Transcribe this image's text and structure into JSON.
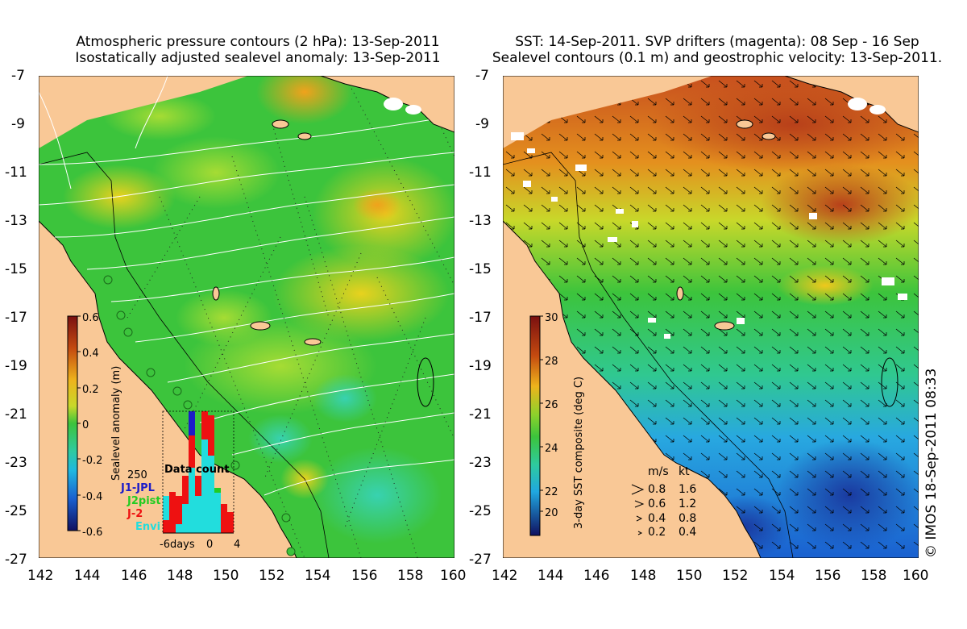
{
  "left_panel": {
    "title_line1": "Atmospheric pressure contours (2 hPa): 13-Sep-2011",
    "title_line2": "Isostatically adjusted sealevel anomaly: 13-Sep-2011",
    "colorbar": {
      "label": "Sealevel anomaly (m)",
      "ticks": [
        "0.6",
        "0.4",
        "0.2",
        "0",
        "-0.2",
        "-0.4",
        "-0.6"
      ]
    },
    "inset": {
      "title": "Data count",
      "max_label": "250",
      "x_ticks": [
        "-6days",
        "0",
        "4"
      ],
      "legend": [
        {
          "name": "J1-JPL",
          "color": "#1c1cc8"
        },
        {
          "name": "J2pist",
          "color": "#22cc22"
        },
        {
          "name": "J-2",
          "color": "#ee1111"
        },
        {
          "name": "Envi",
          "color": "#22dddd"
        }
      ]
    }
  },
  "right_panel": {
    "title_line1": "SST: 14-Sep-2011. SVP drifters (magenta): 08 Sep - 16 Sep",
    "title_line2": "Sealevel contours (0.1 m) and geostrophic velocity: 13-Sep-2011.",
    "colorbar": {
      "label": "3-day SST composite (deg C)",
      "ticks": [
        "30",
        "28",
        "26",
        "24",
        "22",
        "20"
      ]
    },
    "velocity_legend": {
      "header_ms": "m/s",
      "header_kt": "kt",
      "rows": [
        {
          "ms": "0.8",
          "kt": "1.6"
        },
        {
          "ms": "0.6",
          "kt": "1.2"
        },
        {
          "ms": "0.4",
          "kt": "0.8"
        },
        {
          "ms": "0.2",
          "kt": "0.4"
        }
      ]
    }
  },
  "axes": {
    "lat_ticks": [
      "-7",
      "-9",
      "-11",
      "-13",
      "-15",
      "-17",
      "-19",
      "-21",
      "-23",
      "-25",
      "-27"
    ],
    "lon_ticks": [
      "142",
      "144",
      "146",
      "148",
      "150",
      "152",
      "154",
      "156",
      "158",
      "160"
    ]
  },
  "copyright": "© IMOS 18-Sep-2011 08:33",
  "colors": {
    "land": "#f9c896",
    "ssla_zero": "#3cc43c",
    "sst_warm": "#c8501e",
    "sst_cool": "#1e78dc"
  }
}
